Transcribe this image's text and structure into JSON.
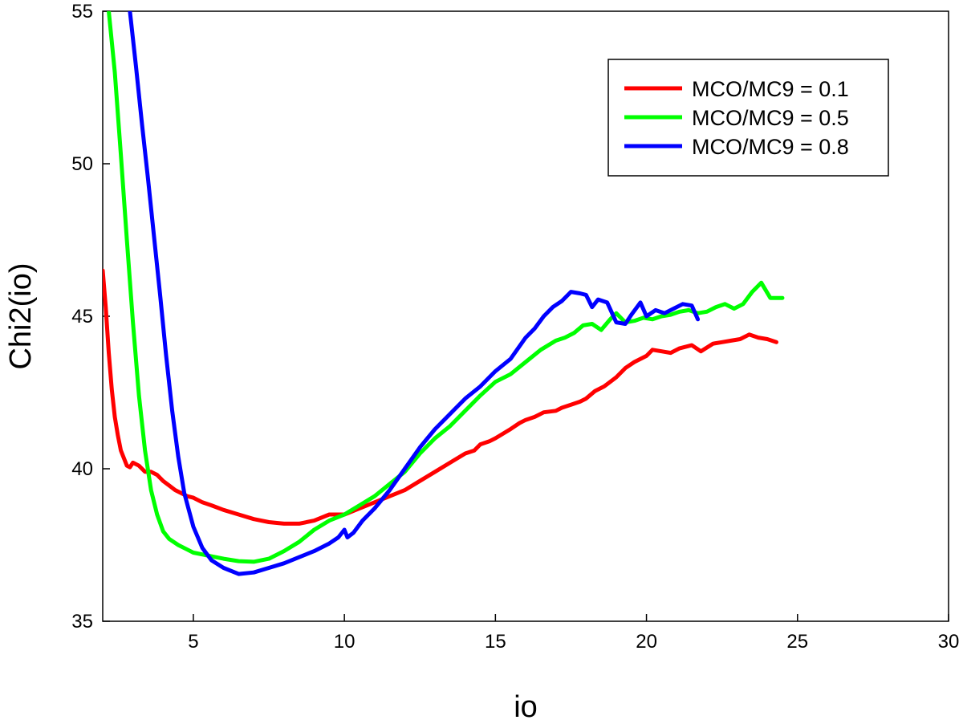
{
  "chart_data": {
    "type": "line",
    "title": "",
    "xlabel": "io",
    "ylabel": "Chi2(io)",
    "xlim": [
      2,
      30
    ],
    "ylim": [
      35,
      55
    ],
    "xticks": [
      5,
      10,
      15,
      20,
      25,
      30
    ],
    "yticks": [
      35,
      40,
      45,
      50,
      55
    ],
    "grid": false,
    "legend_position": "top-right",
    "series": [
      {
        "name": "MCO/MC9 = 0.1",
        "color": "#ff0000",
        "x": [
          2.0,
          2.1,
          2.2,
          2.3,
          2.4,
          2.5,
          2.6,
          2.7,
          2.8,
          2.9,
          3.0,
          3.2,
          3.4,
          3.6,
          3.8,
          4.0,
          4.2,
          4.4,
          4.6,
          4.8,
          5.0,
          5.3,
          5.6,
          6.0,
          6.5,
          7.0,
          7.5,
          8.0,
          8.5,
          9.0,
          9.5,
          10.0,
          10.5,
          11.0,
          11.5,
          12.0,
          12.5,
          13.0,
          13.5,
          14.0,
          14.3,
          14.5,
          14.8,
          15.0,
          15.5,
          15.8,
          16.0,
          16.3,
          16.6,
          17.0,
          17.2,
          17.5,
          17.8,
          18.0,
          18.3,
          18.6,
          19.0,
          19.3,
          19.6,
          20.0,
          20.2,
          20.5,
          20.8,
          21.1,
          21.5,
          21.8,
          22.2,
          22.5,
          22.8,
          23.1,
          23.4,
          23.7,
          24.0,
          24.3
        ],
        "y": [
          46.5,
          45.3,
          43.8,
          42.6,
          41.7,
          41.1,
          40.6,
          40.35,
          40.1,
          40.05,
          40.2,
          40.1,
          39.9,
          39.9,
          39.8,
          39.6,
          39.45,
          39.3,
          39.2,
          39.1,
          39.05,
          38.9,
          38.8,
          38.65,
          38.5,
          38.35,
          38.25,
          38.2,
          38.2,
          38.3,
          38.5,
          38.5,
          38.7,
          38.9,
          39.1,
          39.3,
          39.6,
          39.9,
          40.2,
          40.5,
          40.6,
          40.8,
          40.9,
          41.0,
          41.3,
          41.5,
          41.6,
          41.7,
          41.85,
          41.9,
          42.0,
          42.1,
          42.2,
          42.3,
          42.55,
          42.7,
          43.0,
          43.3,
          43.5,
          43.7,
          43.9,
          43.85,
          43.8,
          43.95,
          44.05,
          43.85,
          44.1,
          44.15,
          44.2,
          44.25,
          44.4,
          44.3,
          44.25,
          44.15
        ]
      },
      {
        "name": "MCO/MC9 = 0.5",
        "color": "#00ff00",
        "x": [
          2.2,
          2.4,
          2.6,
          2.8,
          3.0,
          3.2,
          3.4,
          3.6,
          3.8,
          4.0,
          4.2,
          4.5,
          4.8,
          5.0,
          5.5,
          6.0,
          6.5,
          7.0,
          7.5,
          8.0,
          8.5,
          9.0,
          9.5,
          10.0,
          10.5,
          11.0,
          11.5,
          12.0,
          12.5,
          13.0,
          13.5,
          14.0,
          14.5,
          15.0,
          15.5,
          16.0,
          16.5,
          17.0,
          17.3,
          17.6,
          17.9,
          18.2,
          18.5,
          18.8,
          19.0,
          19.3,
          19.6,
          19.9,
          20.2,
          20.5,
          20.8,
          21.1,
          21.4,
          21.7,
          22.0,
          22.3,
          22.6,
          22.9,
          23.2,
          23.5,
          23.8,
          24.1,
          24.5
        ],
        "y": [
          55.0,
          53.0,
          50.3,
          47.5,
          44.8,
          42.4,
          40.6,
          39.3,
          38.5,
          37.95,
          37.7,
          37.5,
          37.35,
          37.25,
          37.15,
          37.05,
          36.97,
          36.95,
          37.05,
          37.3,
          37.6,
          38.0,
          38.3,
          38.5,
          38.8,
          39.1,
          39.5,
          39.9,
          40.5,
          41.0,
          41.4,
          41.9,
          42.4,
          42.85,
          43.1,
          43.5,
          43.9,
          44.2,
          44.3,
          44.45,
          44.7,
          44.75,
          44.55,
          44.9,
          45.1,
          44.8,
          44.85,
          44.95,
          44.9,
          45.0,
          45.05,
          45.15,
          45.2,
          45.1,
          45.15,
          45.3,
          45.4,
          45.25,
          45.4,
          45.8,
          46.1,
          45.6,
          45.6
        ]
      },
      {
        "name": "MCO/MC9 = 0.8",
        "color": "#0000ff",
        "x": [
          2.9,
          3.1,
          3.3,
          3.5,
          3.7,
          3.9,
          4.1,
          4.3,
          4.5,
          4.7,
          5.0,
          5.3,
          5.6,
          6.0,
          6.5,
          7.0,
          7.5,
          8.0,
          8.5,
          9.0,
          9.5,
          9.8,
          10.0,
          10.1,
          10.3,
          10.6,
          11.0,
          11.5,
          12.0,
          12.5,
          13.0,
          13.5,
          14.0,
          14.5,
          15.0,
          15.5,
          16.0,
          16.3,
          16.6,
          16.9,
          17.2,
          17.5,
          17.8,
          18.0,
          18.2,
          18.4,
          18.7,
          19.0,
          19.3,
          19.5,
          19.8,
          20.0,
          20.3,
          20.6,
          20.9,
          21.2,
          21.5,
          21.7
        ],
        "y": [
          55.0,
          53.2,
          51.3,
          49.5,
          47.6,
          45.7,
          43.7,
          41.9,
          40.4,
          39.2,
          38.1,
          37.4,
          37.0,
          36.75,
          36.55,
          36.6,
          36.75,
          36.9,
          37.1,
          37.3,
          37.55,
          37.75,
          38.0,
          37.75,
          37.9,
          38.3,
          38.7,
          39.3,
          40.0,
          40.7,
          41.3,
          41.8,
          42.3,
          42.7,
          43.2,
          43.6,
          44.3,
          44.6,
          45.0,
          45.3,
          45.5,
          45.8,
          45.75,
          45.7,
          45.3,
          45.55,
          45.45,
          44.8,
          44.75,
          45.05,
          45.45,
          45.0,
          45.2,
          45.1,
          45.25,
          45.4,
          45.35,
          44.9
        ]
      }
    ]
  }
}
